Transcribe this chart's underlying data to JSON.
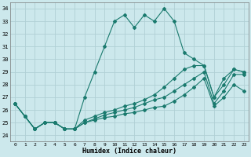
{
  "xlabel": "Humidex (Indice chaleur)",
  "bg_color": "#cce8ec",
  "grid_color": "#b0d0d5",
  "line_color": "#1a7a6e",
  "xlim": [
    -0.5,
    23.5
  ],
  "ylim": [
    23.5,
    34.5
  ],
  "yticks": [
    24,
    25,
    26,
    27,
    28,
    29,
    30,
    31,
    32,
    33,
    34
  ],
  "xticks": [
    0,
    1,
    2,
    3,
    4,
    5,
    6,
    7,
    8,
    9,
    10,
    11,
    12,
    13,
    14,
    15,
    16,
    17,
    18,
    19,
    20,
    21,
    22,
    23
  ],
  "series1": [
    26.5,
    25.5,
    24.5,
    25.0,
    25.0,
    24.5,
    24.5,
    27.0,
    29.0,
    31.0,
    33.0,
    33.5,
    32.5,
    33.5,
    33.0,
    34.0,
    33.0,
    30.5,
    30.0,
    29.5,
    27.0,
    28.0,
    29.2,
    29.0
  ],
  "series2": [
    26.5,
    25.5,
    24.5,
    25.0,
    25.0,
    24.5,
    24.5,
    25.2,
    25.5,
    25.8,
    26.0,
    26.3,
    26.5,
    26.8,
    27.2,
    27.8,
    28.5,
    29.2,
    29.5,
    29.5,
    27.0,
    28.5,
    29.2,
    29.0
  ],
  "series3": [
    26.5,
    25.5,
    24.5,
    25.0,
    25.0,
    24.5,
    24.5,
    25.0,
    25.3,
    25.6,
    25.8,
    26.0,
    26.2,
    26.5,
    26.8,
    27.0,
    27.5,
    28.0,
    28.5,
    29.0,
    26.5,
    27.5,
    28.8,
    28.8
  ],
  "series4": [
    26.5,
    25.5,
    24.5,
    25.0,
    25.0,
    24.5,
    24.5,
    25.0,
    25.2,
    25.4,
    25.5,
    25.7,
    25.8,
    26.0,
    26.2,
    26.3,
    26.7,
    27.2,
    27.8,
    28.5,
    26.3,
    27.0,
    28.0,
    27.5
  ]
}
